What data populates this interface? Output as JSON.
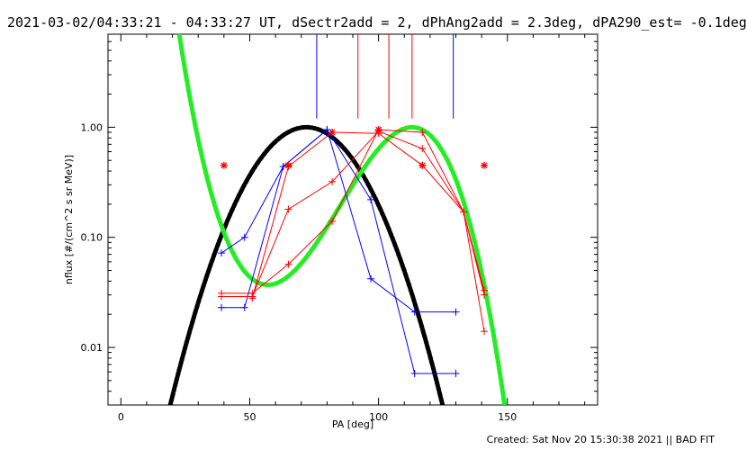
{
  "title": "2021-03-02/04:33:21 - 04:33:27 UT, dSectr2add = 2, dPhAng2add = 2.3deg, dPA290_est= -0.1deg",
  "footer": "Created: Sat Nov 20 15:30:38 2021 || BAD FIT",
  "chart_data": {
    "type": "line",
    "xlabel": "PA [deg]",
    "ylabel": "nflux [#/(cm^2 s sr MeV)]",
    "xlim": [
      -5,
      185
    ],
    "ylim": [
      0.003,
      7
    ],
    "yscale": "log",
    "xticks": [
      0,
      50,
      100,
      150
    ],
    "xtick_labels": [
      "0",
      "50",
      "100",
      "150"
    ],
    "yticks": [
      0.01,
      0.1,
      1.0
    ],
    "ytick_labels": [
      "0.01",
      "0.10",
      "1.00"
    ],
    "colors": {
      "blue": "#0000ff",
      "red": "#ff0000",
      "black": "#000000",
      "green": "#22ee22"
    },
    "series": [
      {
        "color": "blue",
        "points": [
          [
            39,
            0.072
          ],
          [
            48,
            0.1
          ],
          [
            63,
            0.44
          ],
          [
            80,
            0.95
          ],
          [
            97,
            0.22
          ],
          [
            114,
            0.0058
          ],
          [
            130,
            0.0058
          ]
        ]
      },
      {
        "color": "blue",
        "points": [
          [
            39,
            0.023
          ],
          [
            48,
            0.023
          ],
          [
            63,
            0.44
          ],
          [
            80,
            0.95
          ],
          [
            97,
            0.042
          ],
          [
            114,
            0.021
          ],
          [
            130,
            0.021
          ]
        ]
      },
      {
        "color": "red",
        "points": [
          [
            39,
            0.029
          ],
          [
            51,
            0.029
          ],
          [
            65,
            0.18
          ],
          [
            82,
            0.32
          ],
          [
            100,
            0.92
          ],
          [
            117,
            0.64
          ],
          [
            133,
            0.17
          ],
          [
            141,
            0.014
          ]
        ]
      },
      {
        "color": "red",
        "points": [
          [
            39,
            0.031
          ],
          [
            51,
            0.031
          ],
          [
            65,
            0.057
          ],
          [
            82,
            0.14
          ],
          [
            100,
            0.95
          ],
          [
            117,
            0.9
          ],
          [
            133,
            0.17
          ],
          [
            141,
            0.033
          ]
        ]
      },
      {
        "color": "red",
        "points": [
          [
            51,
            0.028
          ],
          [
            65,
            0.44
          ],
          [
            82,
            0.9
          ],
          [
            100,
            0.88
          ],
          [
            117,
            0.45
          ],
          [
            133,
            0.17
          ],
          [
            141,
            0.03
          ]
        ]
      }
    ],
    "star_points": [
      [
        40,
        0.45
      ],
      [
        65,
        0.45
      ],
      [
        82,
        0.9
      ],
      [
        100,
        0.95
      ],
      [
        117,
        0.45
      ],
      [
        141,
        0.45
      ]
    ],
    "fits": [
      {
        "color": "black",
        "kind": "gauss",
        "peak_x": 72,
        "peak_y": 1.0,
        "sigma": 15.5
      },
      {
        "color": "green",
        "kind": "cubic",
        "x_min": 57,
        "y_min": 0.037,
        "x_max": 113,
        "y_max": 1.0
      }
    ],
    "vlines": [
      {
        "x": 76,
        "color": "blue"
      },
      {
        "x": 92,
        "color": "red"
      },
      {
        "x": 104,
        "color": "red"
      },
      {
        "x": 113,
        "color": "red"
      },
      {
        "x": 129,
        "color": "blue"
      }
    ],
    "vline_bottom_y": 1.2
  }
}
